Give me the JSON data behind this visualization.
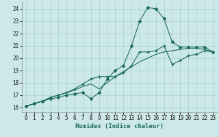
{
  "xlabel": "Humidex (Indice chaleur)",
  "bg_color": "#cce8e8",
  "grid_color": "#aacece",
  "line_color": "#1a6b60",
  "xlim": [
    -0.5,
    23.5
  ],
  "ylim": [
    15.6,
    24.6
  ],
  "xticks": [
    0,
    1,
    2,
    3,
    4,
    5,
    6,
    7,
    8,
    9,
    10,
    11,
    12,
    13,
    14,
    15,
    16,
    17,
    18,
    19,
    20,
    21,
    22,
    23
  ],
  "yticks": [
    16,
    17,
    18,
    19,
    20,
    21,
    22,
    23,
    24
  ],
  "line1_x": [
    0,
    1,
    2,
    3,
    4,
    5,
    6,
    7,
    8,
    9,
    10,
    11,
    12,
    13,
    14,
    15,
    16,
    17,
    18,
    19,
    20,
    21,
    22,
    23
  ],
  "line1_y": [
    16.1,
    16.3,
    16.5,
    16.7,
    16.8,
    17.0,
    17.1,
    17.2,
    16.7,
    17.2,
    18.3,
    19.0,
    19.4,
    21.0,
    23.0,
    24.1,
    24.0,
    23.2,
    21.3,
    20.9,
    20.9,
    20.9,
    20.9,
    20.5
  ],
  "line2_x": [
    0,
    1,
    2,
    3,
    4,
    5,
    6,
    7,
    8,
    9,
    10,
    11,
    12,
    13,
    14,
    15,
    16,
    17,
    18,
    19,
    20,
    21,
    22,
    23
  ],
  "line2_y": [
    16.1,
    16.3,
    16.5,
    16.8,
    17.0,
    17.2,
    17.5,
    17.9,
    18.3,
    18.5,
    18.5,
    18.5,
    18.8,
    19.4,
    20.5,
    20.5,
    20.6,
    21.0,
    19.5,
    19.8,
    20.2,
    20.3,
    20.6,
    20.5
  ],
  "line3_x": [
    0,
    1,
    2,
    3,
    4,
    5,
    6,
    7,
    8,
    9,
    10,
    11,
    12,
    13,
    14,
    15,
    16,
    17,
    18,
    19,
    20,
    21,
    22,
    23
  ],
  "line3_y": [
    16.1,
    16.3,
    16.5,
    16.8,
    17.0,
    17.2,
    17.4,
    17.7,
    17.9,
    17.5,
    18.0,
    18.5,
    18.9,
    19.3,
    19.7,
    20.0,
    20.3,
    20.5,
    20.6,
    20.7,
    20.8,
    20.8,
    20.7,
    20.5
  ],
  "tick_fontsize": 5.5,
  "xlabel_fontsize": 6.5
}
